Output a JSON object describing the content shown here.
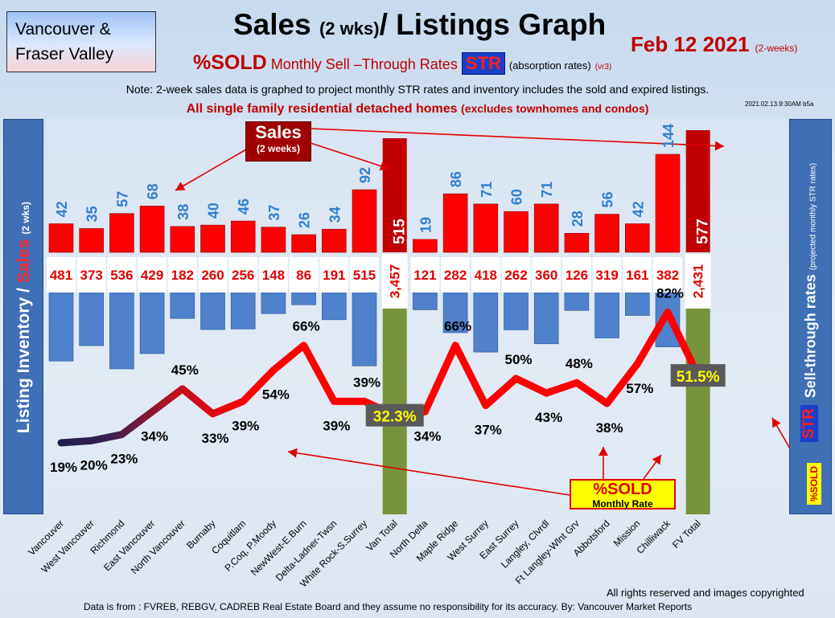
{
  "header": {
    "region": "Vancouver & Fraser Valley",
    "title_main": "Sales",
    "title_small": "(2 wks)",
    "title_rest": "/ Listings Graph",
    "date": "Feb  12  2021",
    "date_note": "(2-weeks)",
    "sub_sold": "%SOLD",
    "sub_text": "Monthly Sell –Through Rates",
    "sub_str": "STR",
    "sub_abs": "(absorption rates)",
    "sub_ver": "(vr3)",
    "note": "Note: 2-week sales data is graphed to project monthly STR rates and inventory includes the sold and expired listings.",
    "note2_main": "All single family residential detached homes",
    "note2_small": "(excludes townhomes and condos)",
    "stamp": "2021.02.13.9:30AM b5a"
  },
  "left_axis": {
    "a": "Listing Inventory /",
    "b": "Sales",
    "c": "(2  wks)"
  },
  "right_axis": {
    "label": "Sell-through rates",
    "small": "(projected monthly STR rates)",
    "str": "STR",
    "sold": "%SOLD"
  },
  "callouts": {
    "sales_l1": "Sales",
    "sales_l2": "(2 weeks)",
    "sold_l1": "%SOLD",
    "sold_l2": "Monthly Rate"
  },
  "footer": {
    "rights": "All rights reserved and  images copyrighted",
    "source": "Data is from : FVREB, REBGV, CADREB Real Estate Board and they assume no responsibility for its accuracy. By: Vancouver Market Reports"
  },
  "colors": {
    "sales_bar": "#ff0000",
    "total_sales_bar": "#c00000",
    "inventory_bar": "#4f81cc",
    "total_inventory_bar": "#77933c",
    "sales_label": "#2f7fd0",
    "inventory_label": "#e00000",
    "str_line": "#ff0000"
  },
  "chart_data": {
    "type": "bar",
    "categories": [
      "Vancouver",
      "West Vancouver",
      "Richmond",
      "East Vancouver",
      "North Vancouver",
      "Burnaby",
      "Coquitlam",
      "P.Coq, P.Moody",
      "NewWest-E.Burn",
      "Delta-Ladner-Twsn",
      "White Rock-S.Surrey",
      "Van Total",
      "North Delta",
      "Maple Ridge",
      "West Surrey",
      "East Surrey",
      "Langley, Clvrdl",
      "Ft Langley-Wlnt Grv",
      "Abbotsford",
      "Mission",
      "Chilliwack",
      "FV Total"
    ],
    "totals": [
      "Van Total",
      "FV Total"
    ],
    "series": [
      {
        "name": "Sales (2 weeks)",
        "values": [
          42,
          35,
          57,
          68,
          38,
          40,
          46,
          37,
          26,
          34,
          92,
          515,
          19,
          86,
          71,
          60,
          71,
          28,
          56,
          42,
          144,
          577
        ],
        "labels": [
          "42",
          "35",
          "57",
          "68",
          "38",
          "40",
          "46",
          "37",
          "26",
          "34",
          "92",
          "515",
          "19",
          "86",
          "71",
          "60",
          "71",
          "28",
          "56",
          "42",
          "144",
          "577"
        ]
      },
      {
        "name": "Listing Inventory",
        "values": [
          481,
          373,
          536,
          429,
          182,
          260,
          256,
          148,
          86,
          191,
          515,
          3457,
          121,
          282,
          418,
          262,
          360,
          126,
          319,
          161,
          382,
          2431
        ],
        "labels": [
          "481",
          "373",
          "536",
          "429",
          "182",
          "260",
          "256",
          "148",
          "86",
          "191",
          "515",
          "3,457",
          "121",
          "282",
          "418",
          "262",
          "360",
          "126",
          "319",
          "161",
          "382",
          "2,431"
        ]
      },
      {
        "name": "%SOLD Monthly Rate",
        "type": "line",
        "values": [
          19,
          20,
          23,
          34,
          45,
          33,
          39,
          54,
          66,
          39,
          39,
          32.3,
          34,
          66,
          37,
          50,
          43,
          48,
          38,
          57,
          82,
          51.5
        ],
        "labels": [
          "19%",
          "20%",
          "23%",
          "34%",
          "45%",
          "33%",
          "39%",
          "54%",
          "66%",
          "39%",
          "39%",
          "32.3%",
          "34%",
          "66%",
          "37%",
          "50%",
          "43%",
          "48%",
          "38%",
          "57%",
          "82%",
          "51.5%"
        ]
      }
    ]
  }
}
